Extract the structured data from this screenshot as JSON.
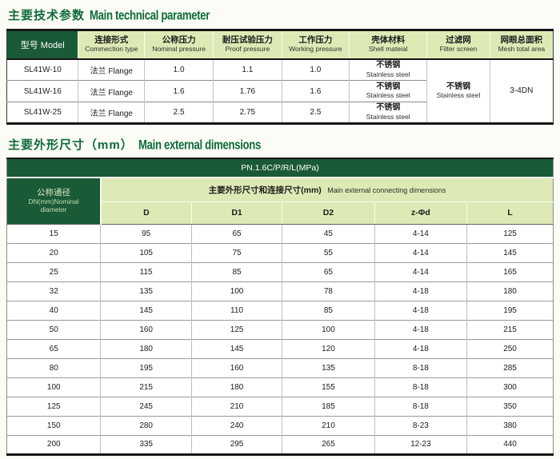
{
  "colors": {
    "dark_green": "#1a5a36",
    "light_green": "#ddeab5",
    "title_green": "#0e6b3a",
    "page_background": "#fbfcf5"
  },
  "sections": {
    "tech": {
      "title_zh": "主要技术参数",
      "title_en": "Main technical parameter"
    },
    "dims": {
      "title_zh": "主要外形尺寸（mm）",
      "title_en": "Main external dimensions"
    }
  },
  "tech": {
    "model_header": "型号 Model",
    "headers": [
      {
        "zh": "连接形式",
        "en": "Commection type"
      },
      {
        "zh": "公称压力",
        "en": "Nominal pressure"
      },
      {
        "zh": "耐压试验压力",
        "en": "Proof pressure"
      },
      {
        "zh": "工作压力",
        "en": "Working pressure"
      },
      {
        "zh": "壳体材料",
        "en": "Shell mateial"
      },
      {
        "zh": "过滤网",
        "en": "Filter screen"
      },
      {
        "zh": "网眼总面积",
        "en": "Mesh total area"
      }
    ],
    "rows": [
      {
        "model": "SL41W-10",
        "connection": "法兰 Flange",
        "nominal": "1.0",
        "proof": "1.1",
        "working": "1.0",
        "shell_zh": "不锈钢",
        "shell_en": "Stainless steel"
      },
      {
        "model": "SL41W-16",
        "connection": "法兰 Flange",
        "nominal": "1.6",
        "proof": "1.76",
        "working": "1.6",
        "shell_zh": "不锈钢",
        "shell_en": "Stainless steel"
      },
      {
        "model": "SL41W-25",
        "connection": "法兰 Flange",
        "nominal": "2.5",
        "proof": "2.75",
        "working": "2.5",
        "shell_zh": "不锈钢",
        "shell_en": "Stainless steel"
      }
    ],
    "merged": {
      "filter_zh": "不锈钢",
      "filter_en": "Stainless steel",
      "mesh": "3-4DN"
    }
  },
  "dims": {
    "pn_header": "PN.1.6C/P/R/L(MPa)",
    "dn_zh": "公称通径",
    "dn_en1": "DN(mm)Nominal",
    "dn_en2": "diameter",
    "span_zh": "主要外形尺寸和连接尺寸(mm)",
    "span_en": "Main external connecting dimensions",
    "col_headers": [
      "D",
      "D1",
      "D2",
      "z-Φd",
      "L"
    ],
    "rows": [
      [
        "15",
        "95",
        "65",
        "45",
        "4-14",
        "125"
      ],
      [
        "20",
        "105",
        "75",
        "55",
        "4-14",
        "145"
      ],
      [
        "25",
        "115",
        "85",
        "65",
        "4-14",
        "165"
      ],
      [
        "32",
        "135",
        "100",
        "78",
        "4-18",
        "180"
      ],
      [
        "40",
        "145",
        "110",
        "85",
        "4-18",
        "195"
      ],
      [
        "50",
        "160",
        "125",
        "100",
        "4-18",
        "215"
      ],
      [
        "65",
        "180",
        "145",
        "120",
        "4-18",
        "250"
      ],
      [
        "80",
        "195",
        "160",
        "135",
        "8-18",
        "285"
      ],
      [
        "100",
        "215",
        "180",
        "155",
        "8-18",
        "300"
      ],
      [
        "125",
        "245",
        "210",
        "185",
        "8-18",
        "350"
      ],
      [
        "150",
        "280",
        "240",
        "210",
        "8-23",
        "380"
      ],
      [
        "200",
        "335",
        "295",
        "265",
        "12-23",
        "440"
      ]
    ]
  }
}
